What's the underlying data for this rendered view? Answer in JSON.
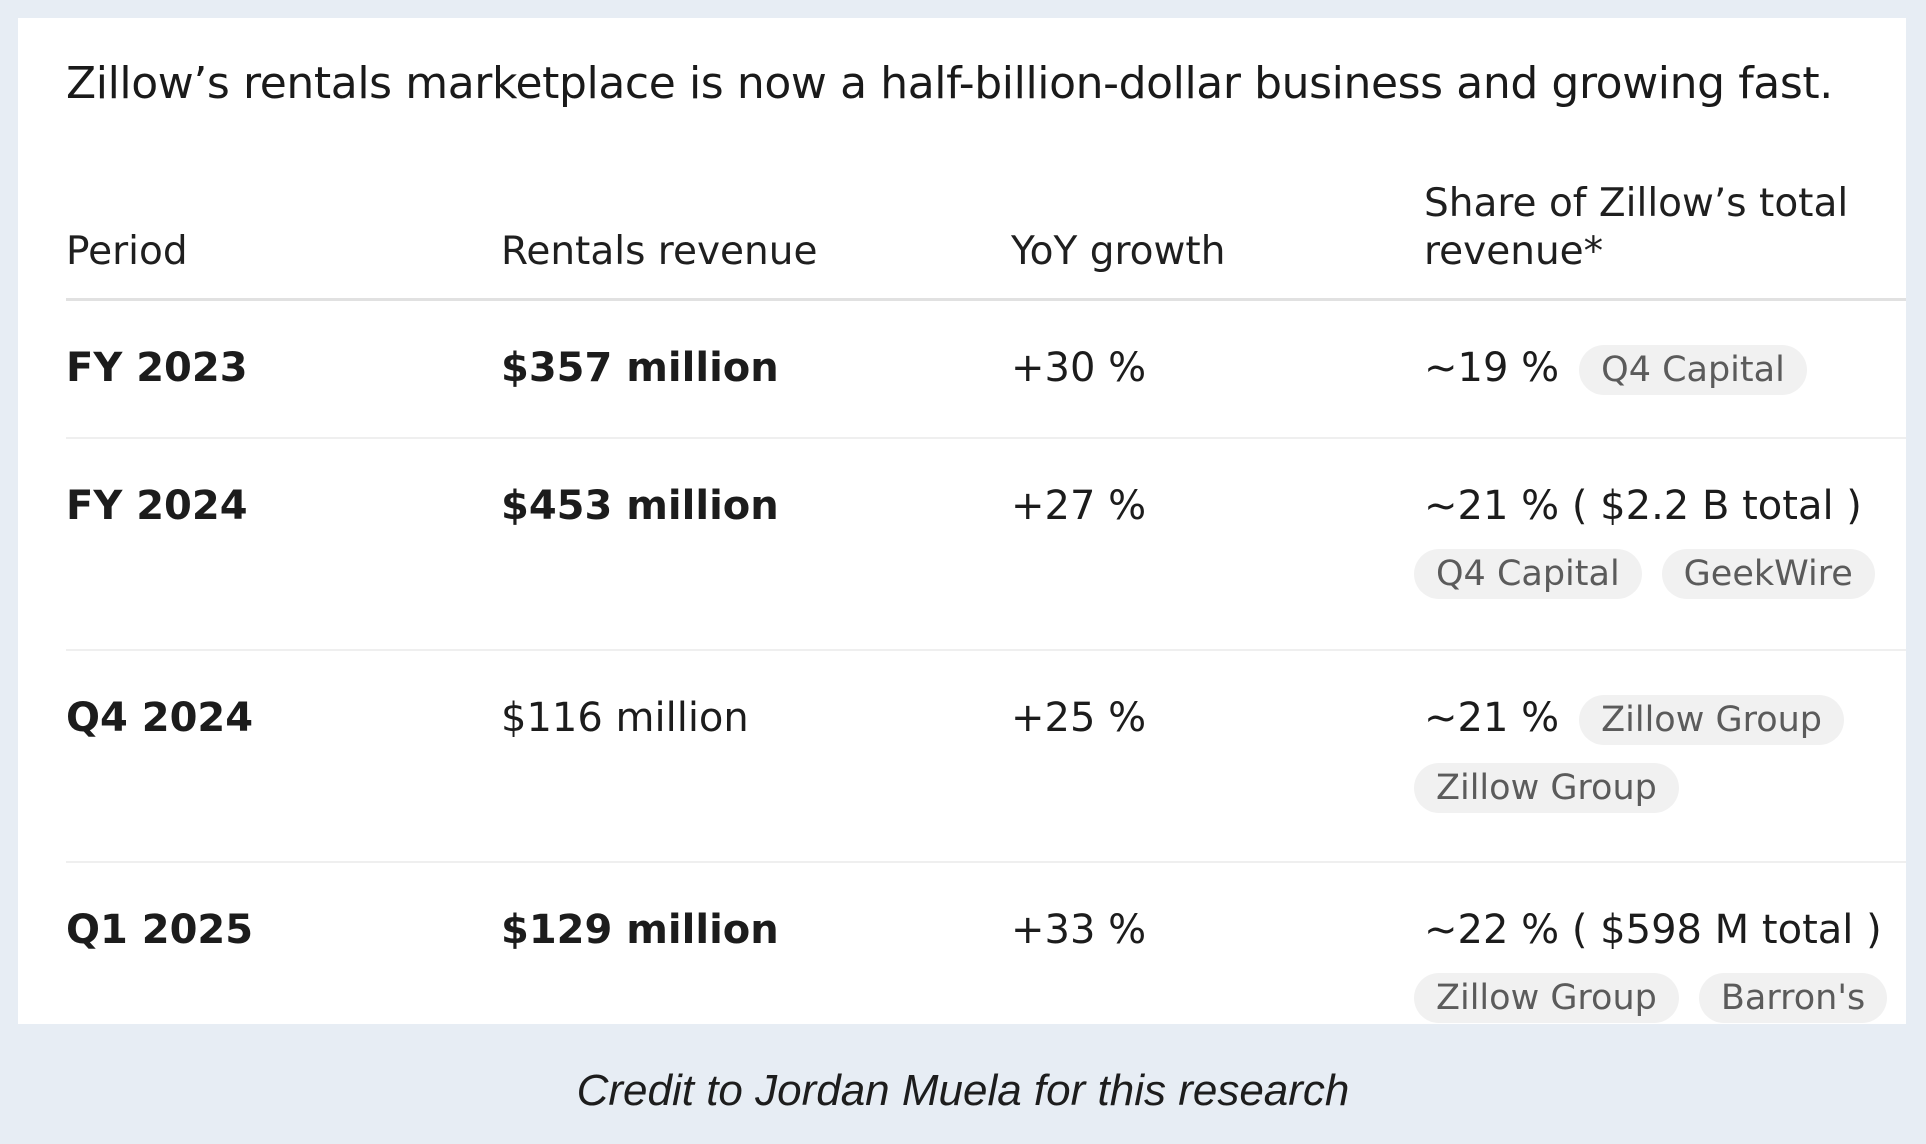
{
  "title": "Zillow’s rentals marketplace is now a half-billion-dollar business and growing fast.",
  "headers": {
    "period": "Period",
    "revenue": "Rentals revenue",
    "growth": "YoY growth",
    "share": "Share of Zillow’s total revenue*"
  },
  "rows": [
    {
      "period": "FY 2023",
      "revenue": "$357 million",
      "revenue_bold": true,
      "growth": "+30 %",
      "share": "~19 %",
      "inline_tags": [
        "Q4 Capital"
      ],
      "block_tags": []
    },
    {
      "period": "FY 2024",
      "revenue": "$453 million",
      "revenue_bold": true,
      "growth": "+27 %",
      "share": "~21 % ( $2.2 B total )",
      "inline_tags": [],
      "block_tags": [
        "Q4 Capital",
        "GeekWire"
      ]
    },
    {
      "period": "Q4 2024",
      "revenue": "$116 million",
      "revenue_bold": false,
      "growth": "+25 %",
      "share": "~21 %",
      "inline_tags": [
        "Zillow Group"
      ],
      "block_tags": [
        "Zillow Group"
      ]
    },
    {
      "period": "Q1 2025",
      "revenue": "$129 million",
      "revenue_bold": true,
      "growth": "+33 %",
      "share": "~22 % ( $598 M total )",
      "inline_tags": [],
      "block_tags": [
        "Zillow Group",
        "Barron's"
      ]
    }
  ],
  "credit": "Credit to Jordan Muela for this research"
}
